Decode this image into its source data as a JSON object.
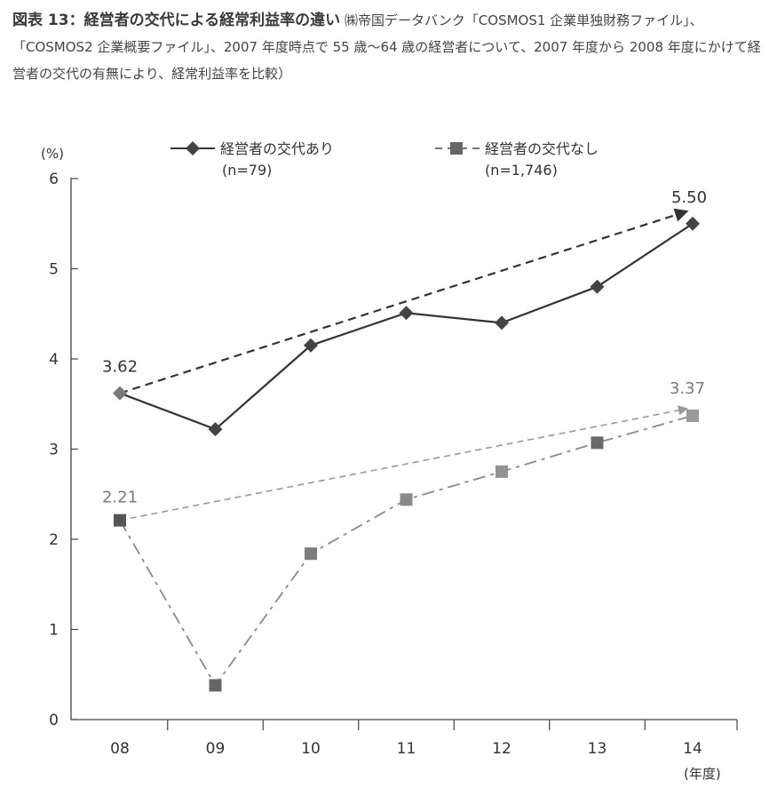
{
  "caption": {
    "label": "図表 13：",
    "title": "経営者の交代による経常利益率の違い",
    "source": "㈱帝国データバンク「COSMOS1 企業単独財務ファイル」、「COSMOS2 企業概要ファイル」、2007 年度時点で 55 歳〜64 歳の経営者について、2007 年度から 2008 年度にかけて経営者の交代の有無により、経常利益率を比較）"
  },
  "chart_data": {
    "type": "line",
    "categories": [
      "08",
      "09",
      "10",
      "11",
      "12",
      "13",
      "14"
    ],
    "ylim": [
      0,
      6
    ],
    "yticks": [
      0,
      1,
      2,
      3,
      4,
      5,
      6
    ],
    "ylabel": "(%)",
    "xlabel": "(年度)",
    "series": [
      {
        "name": "経営者の交代あり",
        "n": "(n=79)",
        "values": [
          3.62,
          3.22,
          4.15,
          4.51,
          4.4,
          4.8,
          5.5
        ],
        "marker": "diamond",
        "line_style": "solid",
        "color": "#333333",
        "start_label": "3.62",
        "end_label": "5.50"
      },
      {
        "name": "経営者の交代なし",
        "n": "(n=1,746)",
        "values": [
          2.21,
          0.38,
          1.84,
          2.44,
          2.75,
          3.07,
          3.37
        ],
        "marker": "square",
        "line_style": "dashed",
        "color": "#8a8a8a",
        "start_label": "2.21",
        "end_label": "3.37"
      }
    ],
    "trend_arrows": [
      {
        "series": "経営者の交代あり",
        "from": "08",
        "to": "14",
        "style": "dashed"
      },
      {
        "series": "経営者の交代なし",
        "from": "08",
        "to": "14",
        "style": "dashed"
      }
    ]
  }
}
